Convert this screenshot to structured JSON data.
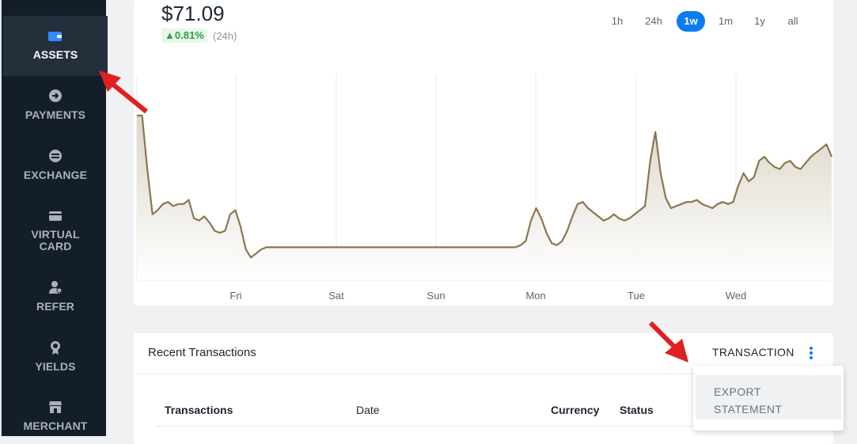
{
  "sidebar": {
    "items": [
      {
        "label": "ASSETS",
        "icon": "wallet-icon",
        "active": true
      },
      {
        "label": "PAYMENTS",
        "icon": "arrow-circle-icon",
        "active": false
      },
      {
        "label": "EXCHANGE",
        "icon": "exchange-icon",
        "active": false
      },
      {
        "label": "VIRTUAL CARD",
        "line1": "VIRTUAL",
        "line2": "CARD",
        "icon": "card-icon",
        "active": false
      },
      {
        "label": "REFER",
        "icon": "user-icon",
        "active": false
      },
      {
        "label": "YIELDS",
        "icon": "medal-icon",
        "active": false
      },
      {
        "label": "MERCHANT",
        "icon": "store-icon",
        "active": false
      }
    ]
  },
  "asset": {
    "price": "$71.09",
    "change": "0.81%",
    "change_period": "(24h)"
  },
  "ranges": [
    "1h",
    "24h",
    "1w",
    "1m",
    "1y",
    "all"
  ],
  "selected_range": "1w",
  "chart_data": {
    "type": "area",
    "x_tick_labels": [
      "Fri",
      "Sat",
      "Sun",
      "Mon",
      "Tue",
      "Wed"
    ],
    "values": [
      80,
      80,
      54,
      32,
      34,
      37,
      38,
      36,
      37,
      37,
      39,
      30,
      29,
      31,
      28,
      24,
      23,
      24,
      32,
      34,
      26,
      15,
      11,
      13,
      15,
      16,
      16,
      16,
      16,
      16,
      16,
      16,
      16,
      16,
      16,
      16,
      16,
      16,
      16,
      16,
      16,
      16,
      16,
      16,
      16,
      16,
      16,
      16,
      16,
      16,
      16,
      16,
      16,
      16,
      16,
      16,
      16,
      16,
      16,
      16,
      16,
      16,
      16,
      16,
      16,
      16,
      16,
      16,
      16,
      16,
      16,
      16,
      16,
      16,
      17,
      19,
      29,
      35,
      30,
      23,
      18,
      17,
      19,
      24,
      31,
      37,
      38,
      35,
      33,
      31,
      29,
      30,
      32,
      30,
      29,
      30,
      32,
      34,
      36,
      58,
      72,
      52,
      40,
      35,
      36,
      37,
      38,
      38,
      39,
      37,
      36,
      35,
      37,
      38,
      37,
      38,
      46,
      52,
      48,
      50,
      58,
      60,
      57,
      55,
      54,
      57,
      58,
      55,
      54,
      57,
      60,
      62,
      64,
      66,
      60
    ],
    "ylim": [
      0,
      100
    ],
    "color": "#8b7650"
  },
  "transactions": {
    "title": "Recent Transactions",
    "action_label": "TRANSACTION",
    "columns": [
      "Transactions",
      "Date",
      "Currency",
      "Status"
    ],
    "menu": {
      "item_line1": "EXPORT",
      "item_line2": "STATEMENT"
    }
  },
  "colors": {
    "accent": "#0a7cf0",
    "positive": "#2e9e4a",
    "sidebar_bg": "#141e2b",
    "arrow": "#e02020"
  }
}
